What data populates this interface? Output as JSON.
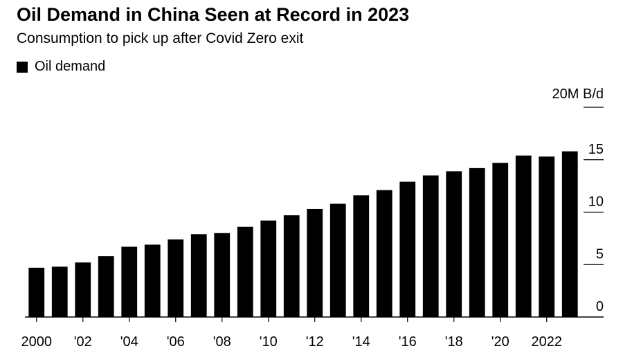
{
  "chart_data": {
    "type": "bar",
    "title": "Oil Demand in China Seen at Record in 2023",
    "subtitle": "Consumption to pick up after Covid Zero exit",
    "legend": [
      {
        "name": "Oil demand",
        "color": "#000000"
      }
    ],
    "unit_label": "20M B/d",
    "categories": [
      "2000",
      "2001",
      "2002",
      "2003",
      "2004",
      "2005",
      "2006",
      "2007",
      "2008",
      "2009",
      "2010",
      "2011",
      "2012",
      "2013",
      "2014",
      "2015",
      "2016",
      "2017",
      "2018",
      "2019",
      "2020",
      "2021",
      "2022",
      "2023"
    ],
    "x_tick_labels": [
      "2000",
      "'02",
      "'04",
      "'06",
      "'08",
      "'10",
      "'12",
      "'14",
      "'16",
      "'18",
      "'20",
      "2022"
    ],
    "series": [
      {
        "name": "Oil demand",
        "values": [
          4.7,
          4.8,
          5.2,
          5.8,
          6.7,
          6.9,
          7.4,
          7.9,
          8.0,
          8.6,
          9.2,
          9.7,
          10.3,
          10.8,
          11.6,
          12.1,
          12.9,
          13.5,
          13.9,
          14.2,
          14.7,
          15.4,
          15.3,
          15.8
        ]
      }
    ],
    "ylim": [
      0,
      20
    ],
    "y_ticks": [
      0,
      5,
      10,
      15,
      20
    ],
    "y_tick_labels": [
      "0",
      "5",
      "10",
      "15",
      ""
    ],
    "axis_position": "right",
    "grid": false
  }
}
